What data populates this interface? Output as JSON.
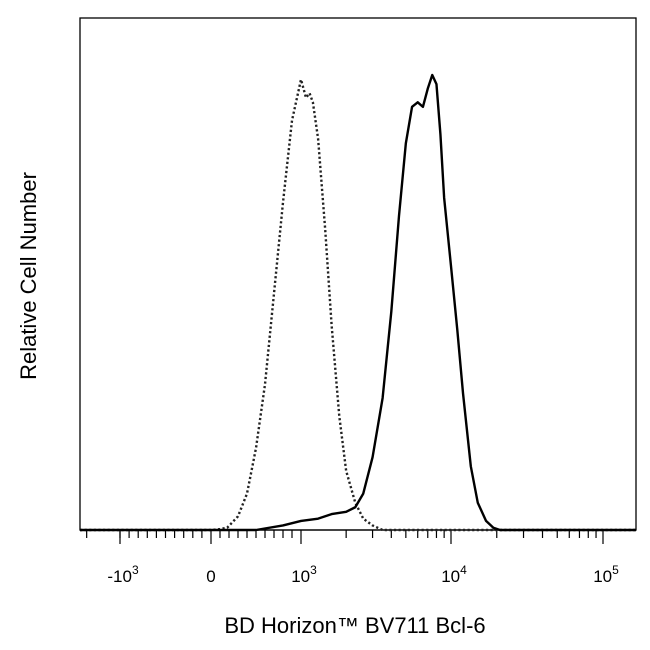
{
  "chart_data": {
    "type": "histogram",
    "title": "",
    "xlabel": "BD Horizon™ BV711 Bcl-6",
    "ylabel": "Relative Cell Number",
    "x_scale": "biexponential",
    "xlim": [
      -1600,
      160000
    ],
    "ylim": [
      0,
      1.0
    ],
    "grid": false,
    "legend": "none",
    "x_ticks": [
      {
        "value": -1000,
        "base": "-10",
        "exp": "3"
      },
      {
        "value": 0,
        "base": "0",
        "exp": ""
      },
      {
        "value": 1000,
        "base": "10",
        "exp": "3"
      },
      {
        "value": 10000,
        "base": "10",
        "exp": "4"
      },
      {
        "value": 100000,
        "base": "10",
        "exp": "5"
      }
    ],
    "series": [
      {
        "style": "dotted",
        "color": "#222222",
        "points": [
          [
            -1600,
            0.0
          ],
          [
            -400,
            0.0
          ],
          [
            0,
            0.0
          ],
          [
            100,
            0.002
          ],
          [
            180,
            0.005
          ],
          [
            300,
            0.03
          ],
          [
            400,
            0.08
          ],
          [
            500,
            0.18
          ],
          [
            600,
            0.32
          ],
          [
            700,
            0.52
          ],
          [
            800,
            0.72
          ],
          [
            900,
            0.9
          ],
          [
            1000,
            0.99
          ],
          [
            1080,
            0.95
          ],
          [
            1140,
            0.96
          ],
          [
            1200,
            0.94
          ],
          [
            1300,
            0.86
          ],
          [
            1450,
            0.66
          ],
          [
            1600,
            0.45
          ],
          [
            1800,
            0.25
          ],
          [
            2000,
            0.13
          ],
          [
            2300,
            0.06
          ],
          [
            2600,
            0.025
          ],
          [
            3000,
            0.01
          ],
          [
            3500,
            0.0
          ],
          [
            160000,
            0.0
          ]
        ]
      },
      {
        "style": "solid",
        "color": "#000000",
        "points": [
          [
            -1600,
            0.0
          ],
          [
            500,
            0.0
          ],
          [
            800,
            0.01
          ],
          [
            1000,
            0.02
          ],
          [
            1300,
            0.025
          ],
          [
            1600,
            0.035
          ],
          [
            2000,
            0.04
          ],
          [
            2300,
            0.05
          ],
          [
            2600,
            0.08
          ],
          [
            3000,
            0.16
          ],
          [
            3500,
            0.29
          ],
          [
            4000,
            0.48
          ],
          [
            4500,
            0.69
          ],
          [
            5000,
            0.85
          ],
          [
            5500,
            0.93
          ],
          [
            6000,
            0.94
          ],
          [
            6500,
            0.93
          ],
          [
            7000,
            0.97
          ],
          [
            7500,
            1.0
          ],
          [
            8000,
            0.98
          ],
          [
            8500,
            0.87
          ],
          [
            9000,
            0.73
          ],
          [
            10000,
            0.58
          ],
          [
            11000,
            0.44
          ],
          [
            12000,
            0.3
          ],
          [
            13500,
            0.14
          ],
          [
            15000,
            0.06
          ],
          [
            17000,
            0.02
          ],
          [
            19000,
            0.005
          ],
          [
            21000,
            0.0
          ],
          [
            160000,
            0.0
          ]
        ]
      }
    ]
  }
}
